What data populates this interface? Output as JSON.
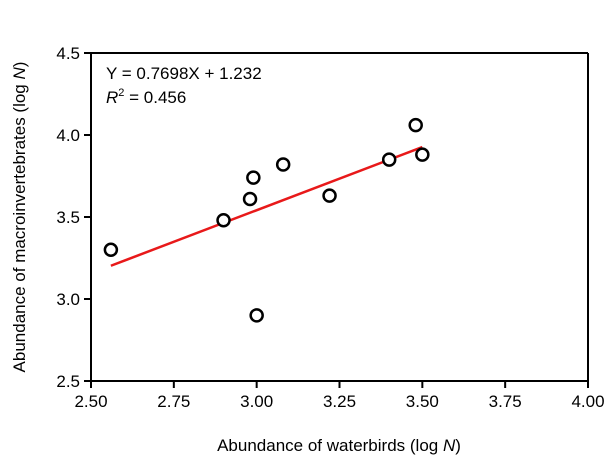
{
  "chart_data": {
    "type": "scatter",
    "xlabel_text": "Abundance of waterbirds (log ",
    "xlabel_italic": "N",
    "xlabel_close": ")",
    "ylabel_text": "Abundance of macroinvertebrates (log ",
    "ylabel_italic": "N",
    "ylabel_close": ")",
    "xlim": [
      2.5,
      4.0
    ],
    "ylim": [
      2.5,
      4.5
    ],
    "x_ticks": [
      2.5,
      2.75,
      3.0,
      3.25,
      3.5,
      3.75,
      4.0
    ],
    "x_tick_labels": [
      "2.50",
      "2.75",
      "3.00",
      "3.25",
      "3.50",
      "3.75",
      "4.00"
    ],
    "y_ticks": [
      2.5,
      3.0,
      3.5,
      4.0,
      4.5
    ],
    "y_tick_labels": [
      "2.5",
      "3.0",
      "3.5",
      "4.0",
      "4.5"
    ],
    "grid": false,
    "legend": "none",
    "points": [
      {
        "x": 2.56,
        "y": 3.3
      },
      {
        "x": 2.9,
        "y": 3.48
      },
      {
        "x": 2.98,
        "y": 3.61
      },
      {
        "x": 2.99,
        "y": 3.74
      },
      {
        "x": 3.0,
        "y": 2.9
      },
      {
        "x": 3.08,
        "y": 3.82
      },
      {
        "x": 3.22,
        "y": 3.63
      },
      {
        "x": 3.4,
        "y": 3.85
      },
      {
        "x": 3.48,
        "y": 4.06
      },
      {
        "x": 3.5,
        "y": 3.88
      }
    ],
    "fit_line": {
      "slope": 0.7698,
      "intercept": 1.232,
      "x_range": [
        2.56,
        3.5
      ],
      "color": "#e8191a"
    },
    "equation_text": "Y = 0.7698X + 1.232",
    "r2_symbol": "R",
    "r2_superscript": "2",
    "r2_value_text": " = 0.456",
    "marker_color": "#000000"
  }
}
